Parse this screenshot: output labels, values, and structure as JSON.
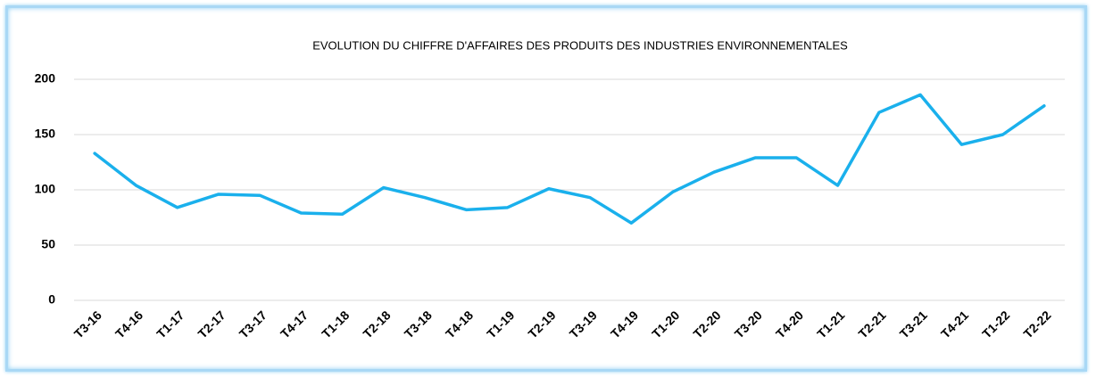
{
  "chart_data": {
    "type": "line",
    "title": "EVOLUTION DU CHIFFRE D'AFFAIRES DES PRODUITS DES INDUSTRIES ENVIRONNEMENTALES",
    "categories": [
      "T3-16",
      "T4-16",
      "T1-17",
      "T2-17",
      "T3-17",
      "T4-17",
      "T1-18",
      "T2-18",
      "T3-18",
      "T4-18",
      "T1-19",
      "T2-19",
      "T3-19",
      "T4-19",
      "T1-20",
      "T2-20",
      "T3-20",
      "T4-20",
      "T1-21",
      "T2-21",
      "T3-21",
      "T4-21",
      "T1-22",
      "T2-22"
    ],
    "series": [
      {
        "name": "Chiffre d'affaires",
        "color": "#1ab0ec",
        "values": [
          133,
          104,
          84,
          96,
          95,
          79,
          78,
          102,
          93,
          82,
          84,
          101,
          93,
          70,
          98,
          116,
          129,
          129,
          104,
          170,
          186,
          141,
          150,
          176
        ]
      }
    ],
    "ylim": [
      0,
      200
    ],
    "yticks": [
      0,
      50,
      100,
      150,
      200
    ],
    "grid": true
  }
}
